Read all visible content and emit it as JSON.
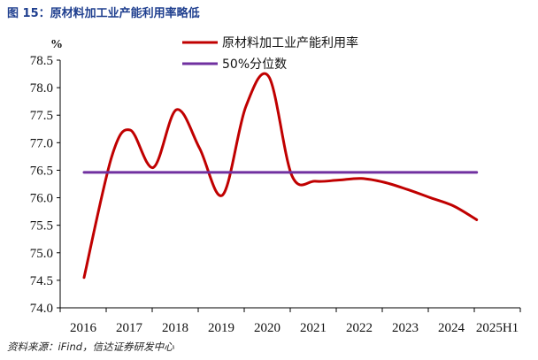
{
  "figure": {
    "title": "图 15：原材料加工业产能利用率略低",
    "source": "资料来源：iFind，信达证券研发中心"
  },
  "chart_data": {
    "type": "line",
    "ylabel": "%",
    "ylim": [
      74.0,
      78.5
    ],
    "yticks": [
      "74.0",
      "74.5",
      "75.0",
      "75.5",
      "76.0",
      "76.5",
      "77.0",
      "77.5",
      "78.0",
      "78.5"
    ],
    "categories": [
      "2016",
      "2017",
      "2018",
      "2019",
      "2020",
      "2021",
      "2022",
      "2023",
      "2024",
      "2025H1"
    ],
    "x": [
      2016.0,
      2016.6,
      2017.0,
      2017.5,
      2018.0,
      2018.5,
      2019.0,
      2019.5,
      2020.0,
      2020.5,
      2021.0,
      2021.5,
      2022.0,
      2022.5,
      2023.0,
      2023.5,
      2024.0,
      2024.5
    ],
    "series": [
      {
        "name": "原材料加工业产能利用率",
        "color": "#c00000",
        "values": [
          74.55,
          76.75,
          77.23,
          76.55,
          77.6,
          76.9,
          76.05,
          77.65,
          78.2,
          76.4,
          76.3,
          76.32,
          76.35,
          76.28,
          76.15,
          76.0,
          75.85,
          75.6
        ]
      },
      {
        "name": "50%分位数",
        "color": "#7030a0",
        "values": [
          76.46,
          76.46,
          76.46,
          76.46,
          76.46,
          76.46,
          76.46,
          76.46,
          76.46,
          76.46,
          76.46,
          76.46,
          76.46,
          76.46,
          76.46,
          76.46,
          76.46,
          76.46
        ]
      }
    ],
    "legend": "top-center",
    "grid": false
  }
}
